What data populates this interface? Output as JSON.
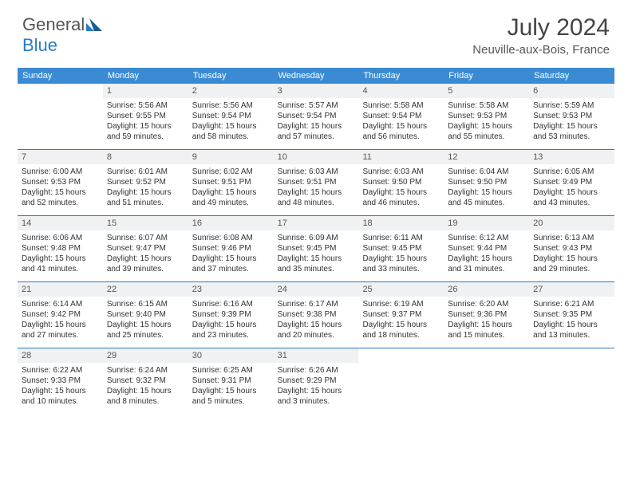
{
  "logo": {
    "text1": "General",
    "text2": "Blue"
  },
  "title": "July 2024",
  "location": "Neuville-aux-Bois, France",
  "colors": {
    "header_bg": "#3b8bd4",
    "header_text": "#ffffff",
    "border": "#2b7bc4",
    "numrow_bg": "#eff1f2",
    "text": "#333333",
    "logo_gray": "#555555",
    "logo_blue": "#2b7bc4"
  },
  "day_names": [
    "Sunday",
    "Monday",
    "Tuesday",
    "Wednesday",
    "Thursday",
    "Friday",
    "Saturday"
  ],
  "weeks": [
    [
      {
        "n": "",
        "empty": true
      },
      {
        "n": "1",
        "sr": "Sunrise: 5:56 AM",
        "ss": "Sunset: 9:55 PM",
        "d1": "Daylight: 15 hours",
        "d2": "and 59 minutes."
      },
      {
        "n": "2",
        "sr": "Sunrise: 5:56 AM",
        "ss": "Sunset: 9:54 PM",
        "d1": "Daylight: 15 hours",
        "d2": "and 58 minutes."
      },
      {
        "n": "3",
        "sr": "Sunrise: 5:57 AM",
        "ss": "Sunset: 9:54 PM",
        "d1": "Daylight: 15 hours",
        "d2": "and 57 minutes."
      },
      {
        "n": "4",
        "sr": "Sunrise: 5:58 AM",
        "ss": "Sunset: 9:54 PM",
        "d1": "Daylight: 15 hours",
        "d2": "and 56 minutes."
      },
      {
        "n": "5",
        "sr": "Sunrise: 5:58 AM",
        "ss": "Sunset: 9:53 PM",
        "d1": "Daylight: 15 hours",
        "d2": "and 55 minutes."
      },
      {
        "n": "6",
        "sr": "Sunrise: 5:59 AM",
        "ss": "Sunset: 9:53 PM",
        "d1": "Daylight: 15 hours",
        "d2": "and 53 minutes."
      }
    ],
    [
      {
        "n": "7",
        "sr": "Sunrise: 6:00 AM",
        "ss": "Sunset: 9:53 PM",
        "d1": "Daylight: 15 hours",
        "d2": "and 52 minutes."
      },
      {
        "n": "8",
        "sr": "Sunrise: 6:01 AM",
        "ss": "Sunset: 9:52 PM",
        "d1": "Daylight: 15 hours",
        "d2": "and 51 minutes."
      },
      {
        "n": "9",
        "sr": "Sunrise: 6:02 AM",
        "ss": "Sunset: 9:51 PM",
        "d1": "Daylight: 15 hours",
        "d2": "and 49 minutes."
      },
      {
        "n": "10",
        "sr": "Sunrise: 6:03 AM",
        "ss": "Sunset: 9:51 PM",
        "d1": "Daylight: 15 hours",
        "d2": "and 48 minutes."
      },
      {
        "n": "11",
        "sr": "Sunrise: 6:03 AM",
        "ss": "Sunset: 9:50 PM",
        "d1": "Daylight: 15 hours",
        "d2": "and 46 minutes."
      },
      {
        "n": "12",
        "sr": "Sunrise: 6:04 AM",
        "ss": "Sunset: 9:50 PM",
        "d1": "Daylight: 15 hours",
        "d2": "and 45 minutes."
      },
      {
        "n": "13",
        "sr": "Sunrise: 6:05 AM",
        "ss": "Sunset: 9:49 PM",
        "d1": "Daylight: 15 hours",
        "d2": "and 43 minutes."
      }
    ],
    [
      {
        "n": "14",
        "sr": "Sunrise: 6:06 AM",
        "ss": "Sunset: 9:48 PM",
        "d1": "Daylight: 15 hours",
        "d2": "and 41 minutes."
      },
      {
        "n": "15",
        "sr": "Sunrise: 6:07 AM",
        "ss": "Sunset: 9:47 PM",
        "d1": "Daylight: 15 hours",
        "d2": "and 39 minutes."
      },
      {
        "n": "16",
        "sr": "Sunrise: 6:08 AM",
        "ss": "Sunset: 9:46 PM",
        "d1": "Daylight: 15 hours",
        "d2": "and 37 minutes."
      },
      {
        "n": "17",
        "sr": "Sunrise: 6:09 AM",
        "ss": "Sunset: 9:45 PM",
        "d1": "Daylight: 15 hours",
        "d2": "and 35 minutes."
      },
      {
        "n": "18",
        "sr": "Sunrise: 6:11 AM",
        "ss": "Sunset: 9:45 PM",
        "d1": "Daylight: 15 hours",
        "d2": "and 33 minutes."
      },
      {
        "n": "19",
        "sr": "Sunrise: 6:12 AM",
        "ss": "Sunset: 9:44 PM",
        "d1": "Daylight: 15 hours",
        "d2": "and 31 minutes."
      },
      {
        "n": "20",
        "sr": "Sunrise: 6:13 AM",
        "ss": "Sunset: 9:43 PM",
        "d1": "Daylight: 15 hours",
        "d2": "and 29 minutes."
      }
    ],
    [
      {
        "n": "21",
        "sr": "Sunrise: 6:14 AM",
        "ss": "Sunset: 9:42 PM",
        "d1": "Daylight: 15 hours",
        "d2": "and 27 minutes."
      },
      {
        "n": "22",
        "sr": "Sunrise: 6:15 AM",
        "ss": "Sunset: 9:40 PM",
        "d1": "Daylight: 15 hours",
        "d2": "and 25 minutes."
      },
      {
        "n": "23",
        "sr": "Sunrise: 6:16 AM",
        "ss": "Sunset: 9:39 PM",
        "d1": "Daylight: 15 hours",
        "d2": "and 23 minutes."
      },
      {
        "n": "24",
        "sr": "Sunrise: 6:17 AM",
        "ss": "Sunset: 9:38 PM",
        "d1": "Daylight: 15 hours",
        "d2": "and 20 minutes."
      },
      {
        "n": "25",
        "sr": "Sunrise: 6:19 AM",
        "ss": "Sunset: 9:37 PM",
        "d1": "Daylight: 15 hours",
        "d2": "and 18 minutes."
      },
      {
        "n": "26",
        "sr": "Sunrise: 6:20 AM",
        "ss": "Sunset: 9:36 PM",
        "d1": "Daylight: 15 hours",
        "d2": "and 15 minutes."
      },
      {
        "n": "27",
        "sr": "Sunrise: 6:21 AM",
        "ss": "Sunset: 9:35 PM",
        "d1": "Daylight: 15 hours",
        "d2": "and 13 minutes."
      }
    ],
    [
      {
        "n": "28",
        "sr": "Sunrise: 6:22 AM",
        "ss": "Sunset: 9:33 PM",
        "d1": "Daylight: 15 hours",
        "d2": "and 10 minutes."
      },
      {
        "n": "29",
        "sr": "Sunrise: 6:24 AM",
        "ss": "Sunset: 9:32 PM",
        "d1": "Daylight: 15 hours",
        "d2": "and 8 minutes."
      },
      {
        "n": "30",
        "sr": "Sunrise: 6:25 AM",
        "ss": "Sunset: 9:31 PM",
        "d1": "Daylight: 15 hours",
        "d2": "and 5 minutes."
      },
      {
        "n": "31",
        "sr": "Sunrise: 6:26 AM",
        "ss": "Sunset: 9:29 PM",
        "d1": "Daylight: 15 hours",
        "d2": "and 3 minutes."
      },
      {
        "n": "",
        "empty": true
      },
      {
        "n": "",
        "empty": true
      },
      {
        "n": "",
        "empty": true
      }
    ]
  ]
}
